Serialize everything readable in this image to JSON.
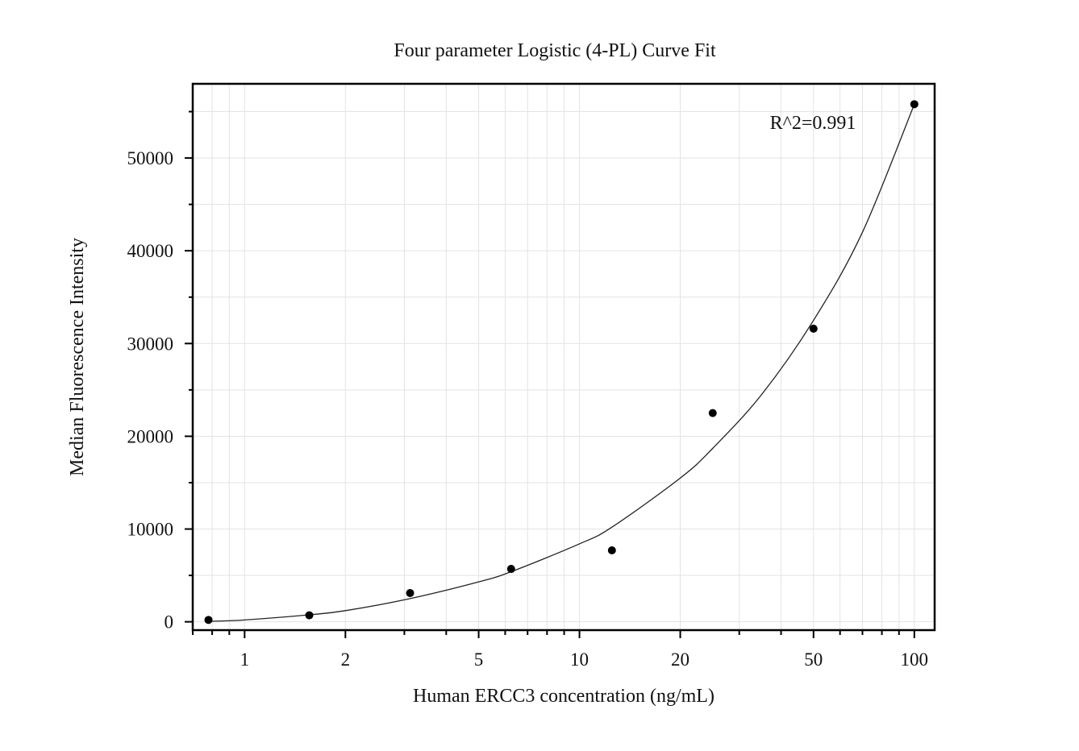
{
  "chart_data": {
    "type": "scatter",
    "title": "Four parameter Logistic (4-PL) Curve Fit",
    "xlabel": "Human ERCC3 concentration (ng/mL)",
    "ylabel": "Median Fluorescence Intensity",
    "x_scale": "log",
    "xlim": [
      0.7,
      115
    ],
    "ylim": [
      -900,
      58000
    ],
    "x_ticks": [
      1,
      2,
      5,
      10,
      20,
      50,
      100
    ],
    "x_tick_labels": [
      "1",
      "2",
      "5",
      "10",
      "20",
      "50",
      "100"
    ],
    "y_ticks": [
      0,
      10000,
      20000,
      30000,
      40000,
      50000
    ],
    "y_tick_labels": [
      "0",
      "10000",
      "20000",
      "30000",
      "40000",
      "50000"
    ],
    "grid": true,
    "annotation": "R^2=0.991",
    "series": [
      {
        "type": "scatter",
        "x": [
          0.78,
          1.56,
          3.12,
          6.25,
          12.5,
          25,
          50,
          100
        ],
        "y": [
          200,
          700,
          3100,
          5700,
          7700,
          22500,
          31600,
          55800
        ]
      },
      {
        "type": "line",
        "x": [
          0.78,
          1,
          1.56,
          2,
          3.12,
          5,
          6.25,
          10,
          12.5,
          20,
          25,
          35,
          50,
          70,
          100
        ],
        "y": [
          50,
          200,
          750,
          1200,
          2500,
          4300,
          5400,
          8400,
          10200,
          15500,
          18700,
          24500,
          32500,
          42000,
          55800
        ]
      }
    ]
  }
}
